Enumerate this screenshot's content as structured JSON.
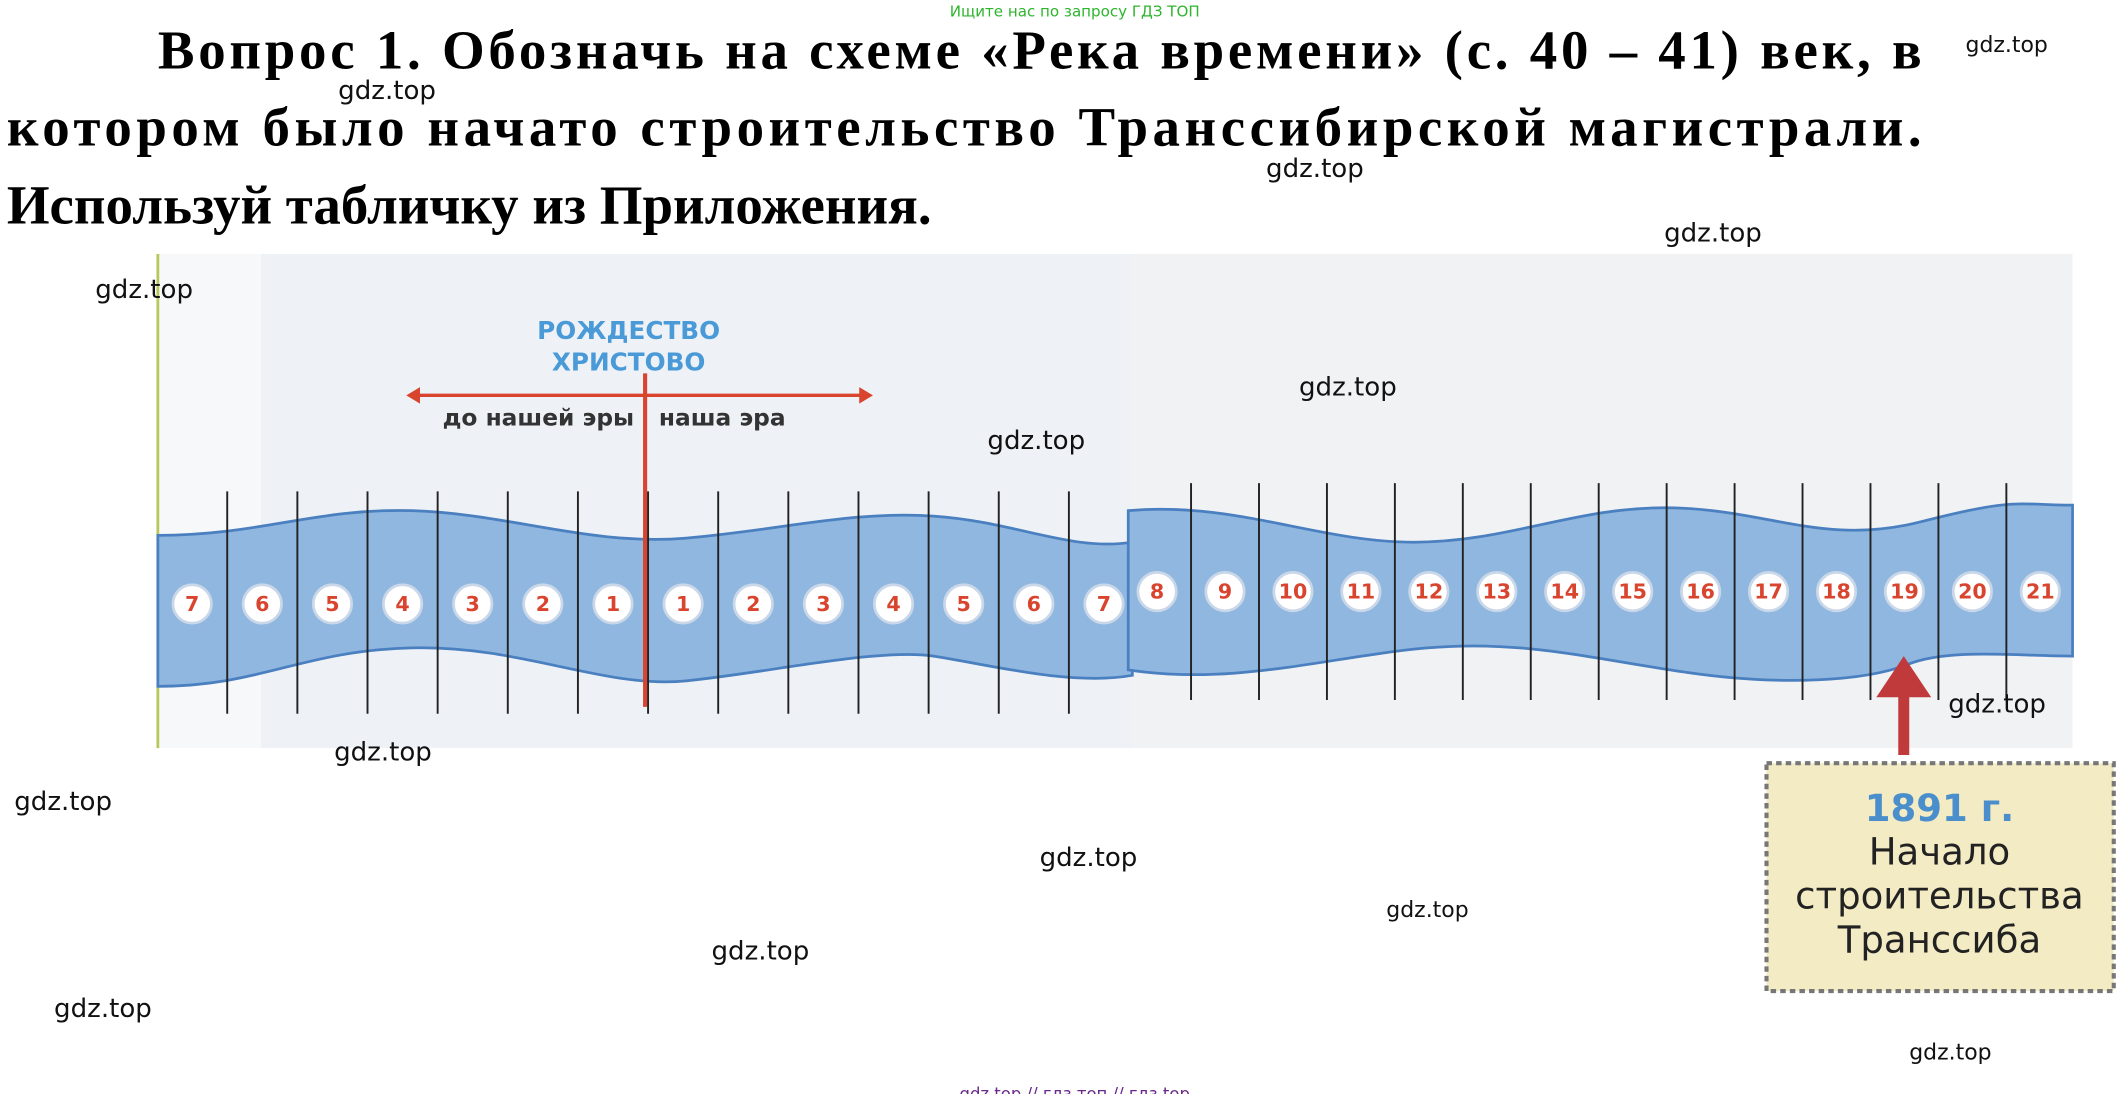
{
  "header_note": "Ищите нас по запросу ГДЗ ТОП",
  "question": {
    "lines": [
      "Вопрос 1.  Обозначь на схеме «Река времени» (с. 40 – 41) век, в",
      "котором было начато строительство Транссибирской магистрали.",
      "Используй табличку из Приложения."
    ]
  },
  "river": {
    "label": [
      "РОЖДЕСТВО",
      "ХРИСТОВО"
    ],
    "bc": "до нашей эры",
    "ad": "наша эра",
    "bc_centuries": [
      "7",
      "6",
      "5",
      "4",
      "3",
      "2",
      "1"
    ],
    "ad_centuries": [
      "1",
      "2",
      "3",
      "4",
      "5",
      "6",
      "7",
      "8",
      "9",
      "10",
      "11",
      "12",
      "13",
      "14",
      "15",
      "16",
      "17",
      "18",
      "19",
      "20",
      "21"
    ]
  },
  "card": {
    "year": "1891 г.",
    "lines": [
      "Начало",
      "строительства",
      "Транссиба"
    ]
  },
  "watermarks": [
    "gdz.top",
    "gdz.top",
    "gdz.top",
    "gdz.top",
    "gdz.top",
    "gdz.top",
    "gdz.top",
    "gdz.top",
    "gdz.top",
    "gdz.top",
    "gdz.top",
    "gdz.top",
    "gdz.top",
    "gdz.top",
    "gdz.top"
  ],
  "footer": "gdz top  //  гдз топ  //  гдз top"
}
